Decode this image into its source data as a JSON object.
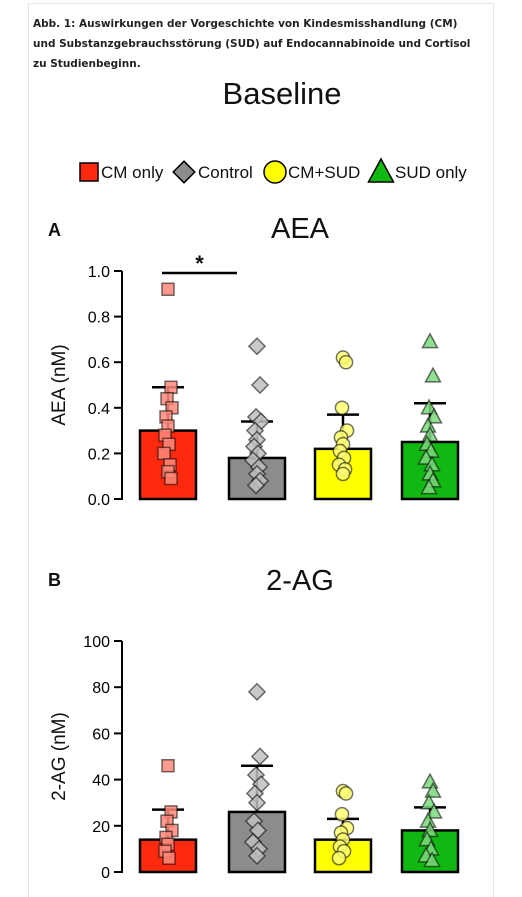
{
  "caption": "Abb. 1: Auswirkungen der Vorgeschichte von Kindesmisshandlung (CM) und Substanzgebrauchsstörung (SUD) auf Endocannabinoide und Cortisol zu Studienbeginn.",
  "colors": {
    "cm_only": "#ff2a0d",
    "control": "#8c8c8c",
    "cm_sud": "#ffff00",
    "sud_only": "#11b811"
  },
  "chart_data": {
    "title": "Baseline",
    "legend": [
      {
        "label": "CM only",
        "marker": "square",
        "color": "#ff2a0d"
      },
      {
        "label": "Control",
        "marker": "diamond",
        "color": "#8c8c8c"
      },
      {
        "label": "CM+SUD",
        "marker": "circle",
        "color": "#ffff00"
      },
      {
        "label": "SUD only",
        "marker": "triangle",
        "color": "#11b811"
      }
    ],
    "legend_position": "top",
    "panels": [
      {
        "type": "bar",
        "panel_label": "A",
        "title": "AEA",
        "ylabel": "AEA (nM)",
        "ylim": [
          0,
          1.0
        ],
        "yticks": [
          "0.0",
          "0.2",
          "0.4",
          "0.6",
          "0.8",
          "1.0"
        ],
        "significance": "*",
        "significance_between": [
          0,
          1
        ],
        "series": [
          {
            "group": "CM only",
            "mean": 0.3,
            "sd": 0.49,
            "points": [
              0.92,
              0.49,
              0.44,
              0.4,
              0.36,
              0.32,
              0.28,
              0.24,
              0.2,
              0.15,
              0.12,
              0.09
            ]
          },
          {
            "group": "Control",
            "mean": 0.18,
            "sd": 0.34,
            "points": [
              0.67,
              0.5,
              0.36,
              0.34,
              0.3,
              0.26,
              0.23,
              0.2,
              0.17,
              0.14,
              0.11,
              0.08,
              0.06
            ]
          },
          {
            "group": "CM+SUD",
            "mean": 0.22,
            "sd": 0.37,
            "points": [
              0.62,
              0.6,
              0.4,
              0.3,
              0.27,
              0.24,
              0.21,
              0.18,
              0.15,
              0.13,
              0.11
            ]
          },
          {
            "group": "SUD only",
            "mean": 0.25,
            "sd": 0.42,
            "points": [
              0.69,
              0.54,
              0.4,
              0.36,
              0.32,
              0.28,
              0.24,
              0.21,
              0.18,
              0.15,
              0.11,
              0.08,
              0.05
            ]
          }
        ]
      },
      {
        "type": "bar",
        "panel_label": "B",
        "title": "2-AG",
        "ylabel": "2-AG (nM)",
        "ylim": [
          0,
          100
        ],
        "yticks": [
          "0",
          "20",
          "40",
          "60",
          "80",
          "100"
        ],
        "series": [
          {
            "group": "CM only",
            "mean": 14,
            "sd": 27,
            "points": [
              46,
              26,
              22,
              18,
              15,
              12,
              9,
              6
            ]
          },
          {
            "group": "Control",
            "mean": 26,
            "sd": 46,
            "points": [
              78,
              50,
              42,
              38,
              34,
              30,
              22,
              18,
              13,
              10,
              7
            ]
          },
          {
            "group": "CM+SUD",
            "mean": 14,
            "sd": 23,
            "points": [
              35,
              34,
              25,
              19,
              17,
              14,
              11,
              9,
              6
            ]
          },
          {
            "group": "SUD only",
            "mean": 18,
            "sd": 28,
            "points": [
              39,
              35,
              30,
              26,
              22,
              18,
              14,
              10,
              7,
              5
            ]
          }
        ]
      }
    ]
  }
}
